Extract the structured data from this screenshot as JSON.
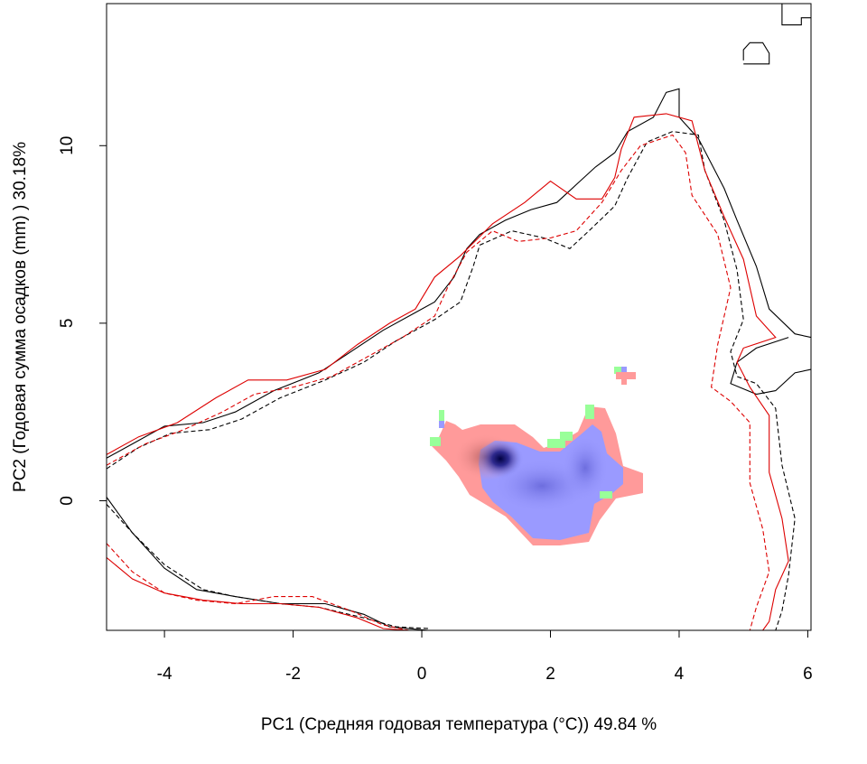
{
  "chart_data": {
    "type": "scatter",
    "title": "",
    "xlabel": "PC1 (Средняя годовая температура (°C)) 49.84 %",
    "ylabel": "PC2 (Годовая сумма осадков  (mm) ) 30.18%",
    "xlim": [
      -4.9,
      6.05
    ],
    "ylim": [
      -3.65,
      14.0
    ],
    "x_ticks": [
      "-4",
      "-2",
      "0",
      "2",
      "4",
      "6"
    ],
    "y_ticks": [
      "0",
      "5",
      "10"
    ],
    "grid": false,
    "legend": "none",
    "colors": {
      "contour_black": "#000000",
      "contour_red": "#dd0000",
      "density_red": "#ff9a9a",
      "density_blue": "#9a9aff",
      "density_peak": "#000040",
      "overlap_green": "#99ff99"
    },
    "series": [
      {
        "style": "black-solid",
        "points": [
          [
            -4.9,
            1.2
          ],
          [
            -4.5,
            1.6
          ],
          [
            -4.0,
            2.1
          ],
          [
            -3.4,
            2.2
          ],
          [
            -2.9,
            2.5
          ],
          [
            -2.3,
            3.1
          ],
          [
            -1.6,
            3.6
          ],
          [
            -1.1,
            4.2
          ],
          [
            -0.6,
            4.8
          ],
          [
            -0.1,
            5.3
          ],
          [
            0.2,
            5.6
          ],
          [
            0.5,
            6.3
          ],
          [
            0.7,
            7.1
          ],
          [
            0.9,
            7.5
          ],
          [
            1.3,
            7.9
          ],
          [
            1.7,
            8.2
          ],
          [
            2.1,
            8.4
          ],
          [
            2.4,
            8.9
          ],
          [
            2.7,
            9.4
          ],
          [
            3.0,
            9.8
          ],
          [
            3.2,
            10.4
          ],
          [
            3.6,
            10.8
          ],
          [
            3.8,
            11.5
          ],
          [
            4.0,
            11.6
          ],
          [
            4.0,
            10.8
          ],
          [
            4.3,
            10.2
          ],
          [
            4.7,
            8.8
          ],
          [
            4.9,
            7.9
          ],
          [
            5.2,
            6.6
          ],
          [
            5.4,
            5.4
          ],
          [
            5.8,
            4.7
          ],
          [
            6.05,
            4.6
          ]
        ]
      },
      {
        "style": "black-solid",
        "points": [
          [
            -4.9,
            0.1
          ],
          [
            -4.5,
            -0.9
          ],
          [
            -4.0,
            -1.9
          ],
          [
            -3.5,
            -2.5
          ],
          [
            -2.9,
            -2.7
          ],
          [
            -2.2,
            -2.9
          ],
          [
            -1.5,
            -2.9
          ],
          [
            -0.9,
            -3.2
          ],
          [
            -0.5,
            -3.55
          ],
          [
            0.1,
            -3.65
          ]
        ]
      },
      {
        "style": "black-solid",
        "points": [
          [
            5.7,
            4.6
          ],
          [
            5.2,
            4.3
          ],
          [
            4.9,
            3.9
          ],
          [
            4.8,
            3.3
          ],
          [
            5.2,
            3.0
          ],
          [
            5.5,
            3.1
          ],
          [
            5.8,
            3.6
          ],
          [
            6.05,
            3.7
          ]
        ]
      },
      {
        "style": "black-solid",
        "points": [
          [
            5.0,
            12.4
          ],
          [
            5.0,
            12.7
          ],
          [
            5.1,
            12.9
          ],
          [
            5.3,
            12.9
          ],
          [
            5.4,
            12.6
          ],
          [
            5.4,
            12.3
          ],
          [
            5.0,
            12.3
          ]
        ]
      },
      {
        "style": "black-solid",
        "points": [
          [
            5.6,
            14.0
          ],
          [
            5.6,
            13.4
          ],
          [
            5.9,
            13.4
          ],
          [
            5.9,
            13.6
          ],
          [
            6.05,
            13.6
          ]
        ]
      },
      {
        "style": "black-dashed",
        "points": [
          [
            -4.9,
            0.9
          ],
          [
            -4.4,
            1.5
          ],
          [
            -3.9,
            1.9
          ],
          [
            -3.3,
            2.0
          ],
          [
            -2.8,
            2.3
          ],
          [
            -2.2,
            2.9
          ],
          [
            -1.5,
            3.4
          ],
          [
            -0.9,
            3.9
          ],
          [
            -0.4,
            4.5
          ],
          [
            0.2,
            5.1
          ],
          [
            0.6,
            5.6
          ],
          [
            0.8,
            6.6
          ],
          [
            0.9,
            7.2
          ],
          [
            1.4,
            7.6
          ],
          [
            1.9,
            7.4
          ],
          [
            2.3,
            7.1
          ],
          [
            2.6,
            7.6
          ],
          [
            3.0,
            8.3
          ],
          [
            3.2,
            9.1
          ],
          [
            3.5,
            10.1
          ],
          [
            3.9,
            10.4
          ],
          [
            4.3,
            10.3
          ],
          [
            4.4,
            9.3
          ],
          [
            4.7,
            7.9
          ],
          [
            4.9,
            6.5
          ],
          [
            5.0,
            5.1
          ],
          [
            4.8,
            4.2
          ],
          [
            4.9,
            3.5
          ],
          [
            5.2,
            3.3
          ],
          [
            5.5,
            2.6
          ],
          [
            5.6,
            1.0
          ],
          [
            5.8,
            -0.5
          ],
          [
            5.7,
            -2.1
          ],
          [
            5.6,
            -3.1
          ],
          [
            5.5,
            -3.65
          ]
        ]
      },
      {
        "style": "black-dashed",
        "points": [
          [
            -4.9,
            -0.1
          ],
          [
            -4.5,
            -0.9
          ],
          [
            -4.0,
            -1.8
          ],
          [
            -3.4,
            -2.5
          ],
          [
            -2.9,
            -2.7
          ],
          [
            -2.2,
            -2.9
          ],
          [
            -1.6,
            -3.0
          ],
          [
            -0.9,
            -3.3
          ],
          [
            -0.4,
            -3.55
          ],
          [
            0.1,
            -3.6
          ]
        ]
      },
      {
        "style": "red-solid",
        "points": [
          [
            -4.9,
            1.3
          ],
          [
            -4.4,
            1.8
          ],
          [
            -3.8,
            2.2
          ],
          [
            -3.2,
            2.9
          ],
          [
            -2.7,
            3.4
          ],
          [
            -2.1,
            3.4
          ],
          [
            -1.5,
            3.7
          ],
          [
            -1.0,
            4.4
          ],
          [
            -0.5,
            5.0
          ],
          [
            -0.1,
            5.4
          ],
          [
            0.2,
            6.3
          ],
          [
            0.6,
            6.9
          ],
          [
            1.1,
            7.8
          ],
          [
            1.6,
            8.4
          ],
          [
            2.0,
            9.0
          ],
          [
            2.4,
            8.5
          ],
          [
            2.8,
            8.5
          ],
          [
            3.0,
            9.1
          ],
          [
            3.1,
            9.9
          ],
          [
            3.3,
            10.8
          ],
          [
            3.8,
            10.9
          ],
          [
            4.2,
            10.7
          ],
          [
            4.4,
            9.3
          ],
          [
            4.7,
            8.0
          ],
          [
            5.0,
            6.8
          ],
          [
            5.2,
            5.2
          ],
          [
            5.5,
            4.6
          ],
          [
            5.0,
            4.3
          ],
          [
            4.9,
            3.9
          ],
          [
            5.1,
            3.2
          ],
          [
            5.4,
            2.4
          ],
          [
            5.4,
            0.8
          ],
          [
            5.6,
            -0.5
          ],
          [
            5.7,
            -1.7
          ],
          [
            5.5,
            -2.5
          ],
          [
            5.4,
            -3.4
          ],
          [
            5.3,
            -3.65
          ]
        ]
      },
      {
        "style": "red-solid",
        "points": [
          [
            -4.9,
            -1.6
          ],
          [
            -4.5,
            -2.2
          ],
          [
            -4.0,
            -2.6
          ],
          [
            -3.4,
            -2.8
          ],
          [
            -2.8,
            -2.9
          ],
          [
            -2.2,
            -2.9
          ],
          [
            -1.6,
            -3.0
          ],
          [
            -1.0,
            -3.3
          ],
          [
            -0.6,
            -3.6
          ],
          [
            -0.2,
            -3.65
          ]
        ]
      },
      {
        "style": "red-dashed",
        "points": [
          [
            -4.9,
            1.0
          ],
          [
            -4.3,
            1.6
          ],
          [
            -3.7,
            2.0
          ],
          [
            -3.1,
            2.5
          ],
          [
            -2.6,
            3.0
          ],
          [
            -2.0,
            3.2
          ],
          [
            -1.4,
            3.5
          ],
          [
            -0.8,
            4.1
          ],
          [
            -0.3,
            4.6
          ],
          [
            0.2,
            5.2
          ],
          [
            0.4,
            6.0
          ],
          [
            0.7,
            7.0
          ],
          [
            1.1,
            7.6
          ],
          [
            1.5,
            7.3
          ],
          [
            2.0,
            7.4
          ],
          [
            2.4,
            7.6
          ],
          [
            2.8,
            8.4
          ],
          [
            3.1,
            9.3
          ],
          [
            3.4,
            10.0
          ],
          [
            3.9,
            10.3
          ],
          [
            4.1,
            9.8
          ],
          [
            4.2,
            8.6
          ],
          [
            4.6,
            7.5
          ],
          [
            4.8,
            6.0
          ],
          [
            4.6,
            4.4
          ],
          [
            4.5,
            3.2
          ],
          [
            4.8,
            2.8
          ],
          [
            5.1,
            2.2
          ],
          [
            5.1,
            0.5
          ],
          [
            5.3,
            -0.8
          ],
          [
            5.4,
            -2.0
          ],
          [
            5.2,
            -3.0
          ],
          [
            5.1,
            -3.65
          ]
        ]
      },
      {
        "style": "red-dashed",
        "points": [
          [
            -4.9,
            -1.2
          ],
          [
            -4.5,
            -2.0
          ],
          [
            -4.0,
            -2.6
          ],
          [
            -3.5,
            -2.8
          ],
          [
            -2.9,
            -2.9
          ],
          [
            -2.3,
            -2.7
          ],
          [
            -1.7,
            -2.7
          ],
          [
            -1.1,
            -3.1
          ],
          [
            -0.6,
            -3.5
          ],
          [
            -0.2,
            -3.65
          ]
        ]
      }
    ]
  }
}
